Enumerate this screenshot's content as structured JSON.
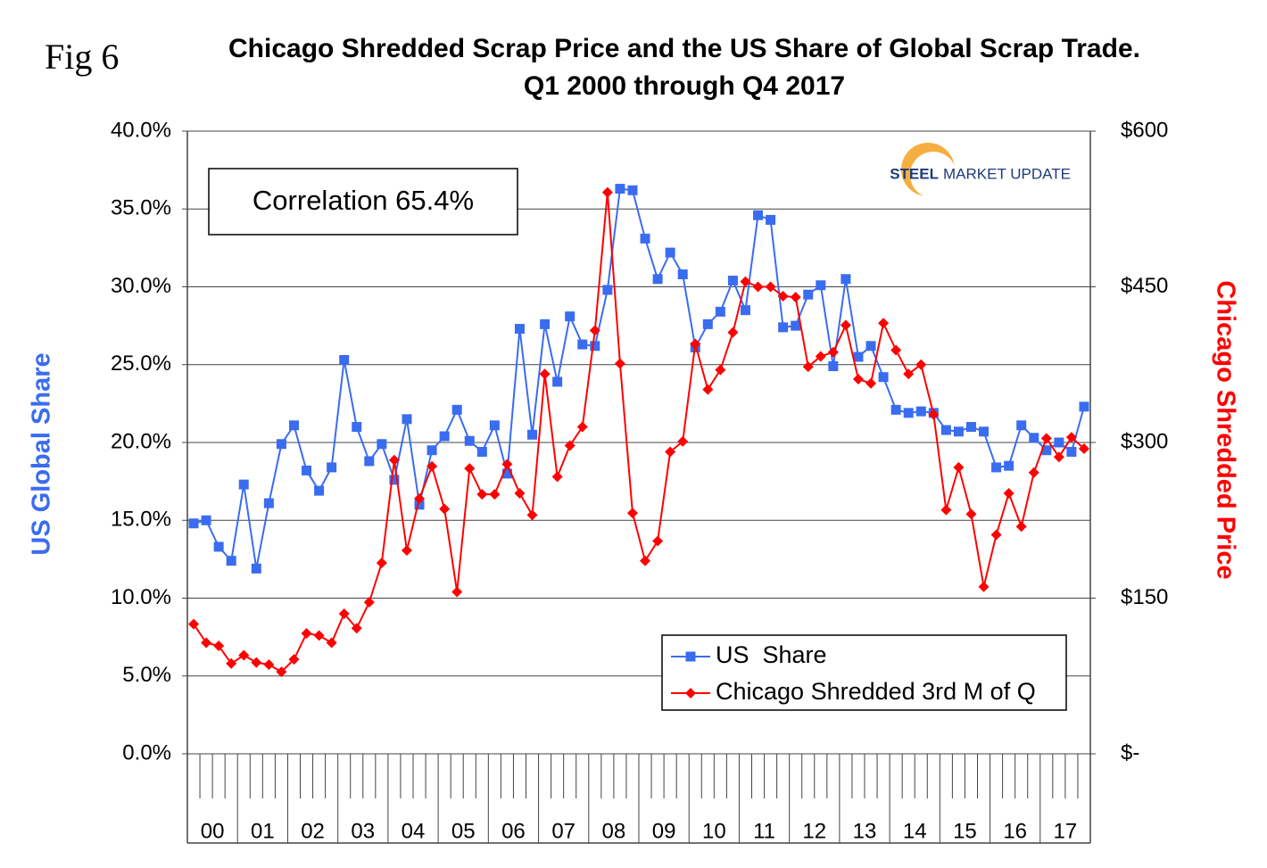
{
  "chart_data": {
    "type": "line",
    "figure_label": "Fig 6",
    "title": "Chicago Shredded Scrap Price and the US Share of Global Scrap Trade. Q1 2000 through Q4 2017",
    "annotation": "Correlation 65.4%",
    "logo": [
      "STEEL",
      "MARKET UPDATE"
    ],
    "y_label": "US Global Share",
    "y2_label": "Chicago Shredded Price",
    "categories": [
      "00",
      null,
      null,
      null,
      "01",
      null,
      null,
      null,
      "02",
      null,
      null,
      null,
      "03",
      null,
      null,
      null,
      "04",
      null,
      null,
      null,
      "05",
      null,
      null,
      null,
      "06",
      null,
      null,
      null,
      "07",
      null,
      null,
      null,
      "08",
      null,
      null,
      null,
      "09",
      null,
      null,
      null,
      "10",
      null,
      null,
      null,
      "11",
      null,
      null,
      null,
      "12",
      null,
      null,
      null,
      "13",
      null,
      null,
      null,
      "14",
      null,
      null,
      null,
      "15",
      null,
      null,
      null,
      "16",
      null,
      null,
      null,
      "17",
      null,
      null,
      null
    ],
    "series": [
      {
        "name": "US  Share",
        "color": "#3a6cf0",
        "marker": "square",
        "axis": "y",
        "values": [
          14.8,
          15.0,
          13.3,
          12.4,
          17.3,
          11.9,
          16.1,
          19.9,
          21.1,
          18.2,
          16.9,
          18.4,
          25.3,
          21.0,
          18.8,
          19.9,
          17.6,
          21.5,
          16.0,
          19.5,
          20.4,
          22.1,
          20.1,
          19.4,
          21.1,
          18.0,
          27.3,
          20.5,
          27.6,
          23.9,
          28.1,
          26.3,
          26.2,
          29.8,
          36.3,
          36.2,
          33.1,
          30.5,
          32.2,
          30.8,
          26.1,
          27.6,
          28.4,
          30.4,
          28.5,
          34.6,
          34.3,
          27.4,
          27.5,
          29.5,
          30.1,
          24.9,
          30.5,
          25.5,
          26.2,
          24.2,
          22.1,
          21.9,
          22.0,
          21.9,
          20.8,
          20.7,
          21.0,
          20.7,
          18.4,
          18.5,
          21.1,
          20.3,
          19.5,
          20.0,
          19.4,
          22.3
        ]
      },
      {
        "name": "Chicago Shredded 3rd M of Q",
        "color": "#ff0000",
        "marker": "diamond",
        "axis": "y2",
        "values": [
          125,
          107,
          104,
          87,
          95,
          88,
          86,
          79,
          91,
          116,
          114,
          107,
          135,
          121,
          146,
          184,
          283,
          196,
          246,
          277,
          236,
          156,
          275,
          250,
          250,
          279,
          251,
          230,
          366,
          267,
          297,
          315,
          408,
          541,
          376,
          232,
          186,
          205,
          291,
          301,
          395,
          351,
          370,
          406,
          455,
          450,
          450,
          441,
          440,
          373,
          383,
          387,
          413,
          361,
          357,
          415,
          389,
          366,
          375,
          327,
          235,
          276,
          231,
          161,
          211,
          251,
          219,
          271,
          304,
          286,
          305,
          294
        ]
      }
    ],
    "ylim": [
      0,
      40
    ],
    "yticks": [
      {
        "value": 0,
        "label": "0.0%"
      },
      {
        "value": 5,
        "label": "5.0%"
      },
      {
        "value": 10,
        "label": "10.0%"
      },
      {
        "value": 15,
        "label": "15.0%"
      },
      {
        "value": 20,
        "label": "20.0%"
      },
      {
        "value": 25,
        "label": "25.0%"
      },
      {
        "value": 30,
        "label": "30.0%"
      },
      {
        "value": 35,
        "label": "35.0%"
      },
      {
        "value": 40,
        "label": "40.0%"
      }
    ],
    "y2lim": [
      0,
      600
    ],
    "y2ticks": [
      {
        "value": 0,
        "label": "$-"
      },
      {
        "value": 150,
        "label": "$150"
      },
      {
        "value": 300,
        "label": "$300"
      },
      {
        "value": 450,
        "label": "$450"
      },
      {
        "value": 600,
        "label": "$600"
      }
    ],
    "grid": true,
    "legend": "bottom-right"
  }
}
